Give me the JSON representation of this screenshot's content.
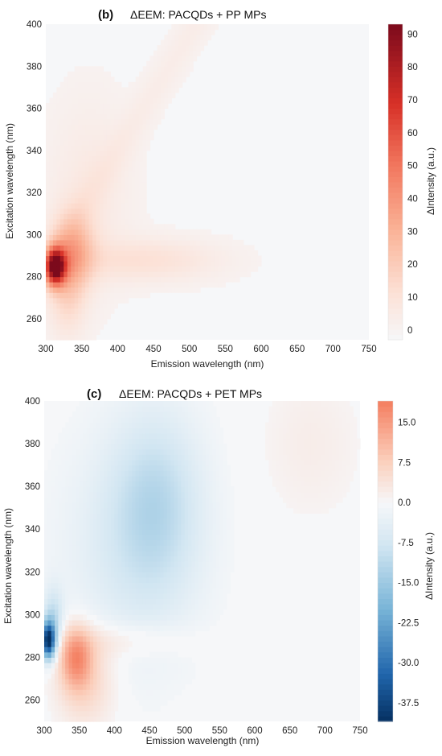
{
  "chart_data": [
    {
      "type": "heatmap",
      "panel_label": "(b)",
      "title": "ΔEEM: PACQDs + PP MPs",
      "xlabel": "Emission wavelength (nm)",
      "ylabel": "Excitation wavelength (nm)",
      "colorbar_label": "ΔIntensity (a.u.)",
      "xlim": [
        300,
        750
      ],
      "ylim": [
        250,
        400
      ],
      "xticks": [
        300,
        350,
        400,
        450,
        500,
        550,
        600,
        650,
        700,
        750
      ],
      "yticks": [
        260,
        280,
        300,
        320,
        340,
        360,
        380,
        400
      ],
      "colorbar_range": [
        -3,
        93
      ],
      "colorbar_ticks": [
        "0",
        "10",
        "20",
        "30",
        "40",
        "50",
        "60",
        "70",
        "80",
        "90"
      ],
      "colormap": "Reds",
      "features": [
        {
          "x": 315,
          "y": 285,
          "value": 92
        },
        {
          "x": 340,
          "y": 290,
          "value": 35
        },
        {
          "x": 460,
          "y": 288,
          "value": 12
        },
        {
          "x": 560,
          "y": 340,
          "value": 4
        }
      ]
    },
    {
      "type": "heatmap",
      "panel_label": "(c)",
      "title": "ΔEEM: PACQDs + PET MPs",
      "xlabel": "Emission wavelength (nm)",
      "ylabel": "Excitation wavelength (nm)",
      "colorbar_label": "ΔIntensity (a.u.)",
      "xlim": [
        300,
        750
      ],
      "ylim": [
        250,
        400
      ],
      "xticks": [
        300,
        350,
        400,
        450,
        500,
        550,
        600,
        650,
        700,
        750
      ],
      "yticks": [
        260,
        280,
        300,
        320,
        340,
        360,
        380,
        400
      ],
      "colorbar_range": [
        -41,
        19
      ],
      "colorbar_ticks": [
        "15.0",
        "7.5",
        "0.0",
        "-7.5",
        "-15.0",
        "-22.5",
        "-30.0",
        "-37.5"
      ],
      "colormap": "RdBu_r",
      "features": [
        {
          "x": 305,
          "y": 288,
          "value": -40
        },
        {
          "x": 340,
          "y": 280,
          "value": 14
        },
        {
          "x": 460,
          "y": 350,
          "value": -9
        },
        {
          "x": 650,
          "y": 380,
          "value": 2
        }
      ]
    }
  ]
}
